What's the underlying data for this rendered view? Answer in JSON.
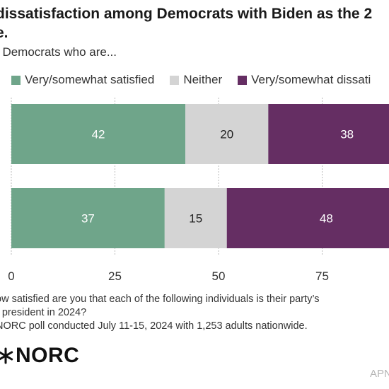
{
  "title": {
    "line1": "dissatisfaction among Democrats with Biden as the 2",
    "line2": "e."
  },
  "subtitle": "f Democrats who are...",
  "colors": {
    "satisfied": "#6fa58a",
    "neither": "#d4d4d4",
    "dissatisfied": "#652e63",
    "gridline": "#bbbbbb"
  },
  "chart_data": {
    "type": "bar",
    "orientation": "horizontal",
    "stacked": true,
    "categories": [
      "",
      ""
    ],
    "series": [
      {
        "name": "Very/somewhat satisfied",
        "values": [
          42,
          37
        ]
      },
      {
        "name": "Neither",
        "values": [
          20,
          15
        ]
      },
      {
        "name": "Very/somewhat dissati",
        "values": [
          38,
          48
        ]
      }
    ],
    "x_ticks": [
      "0",
      "25",
      "50",
      "75"
    ],
    "xlim": [
      0,
      100
    ],
    "grid": true,
    "legend_position": "top"
  },
  "notes": {
    "line1": "ow satisfied are you that each of the following individuals is their party’s",
    "line2": "r president in 2024?",
    "line3": "NORC poll conducted July 11-15, 2024 with 1,253 adults nationwide."
  },
  "logo": {
    "text": "NORC"
  },
  "credit": "APN"
}
